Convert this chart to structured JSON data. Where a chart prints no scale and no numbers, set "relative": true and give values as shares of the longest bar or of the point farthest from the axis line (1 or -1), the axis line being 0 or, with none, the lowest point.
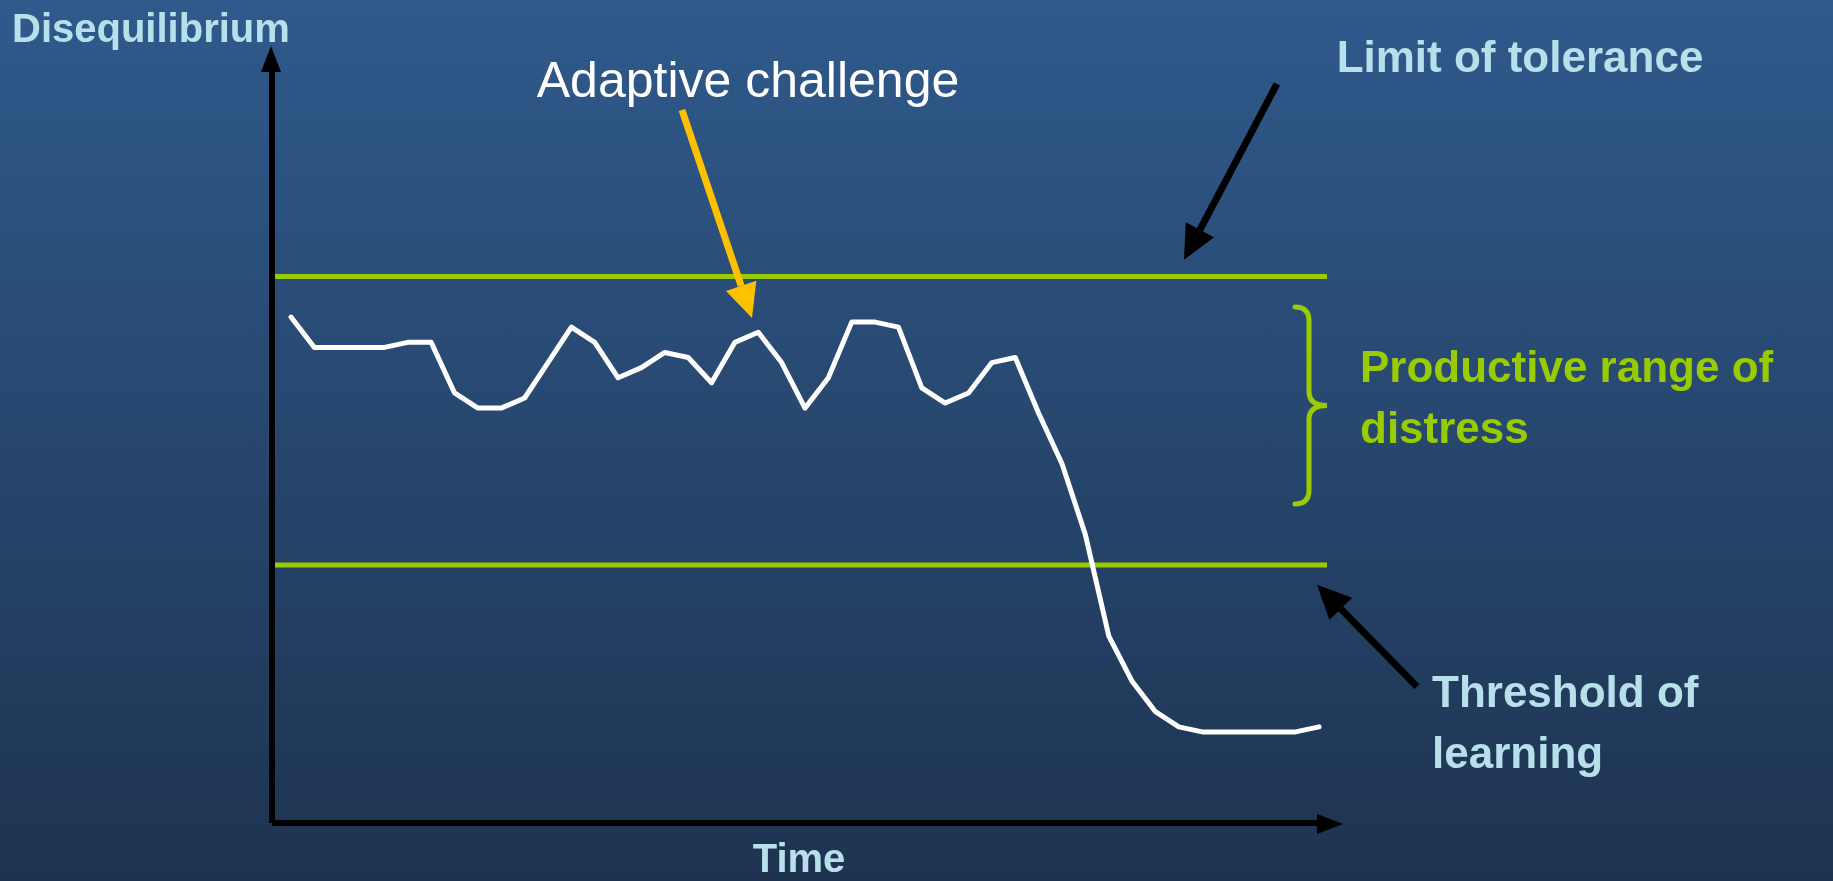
{
  "chart_data": {
    "type": "line",
    "relative": true,
    "xlabel": "Time",
    "marker": "none",
    "categories": [
      null,
      null,
      null,
      null,
      null,
      null,
      null,
      null,
      null,
      null,
      null,
      null,
      null,
      null,
      null,
      null,
      null,
      null,
      null,
      null,
      null,
      null,
      null,
      null,
      null,
      null,
      null,
      null,
      null,
      null,
      null,
      null,
      null,
      null,
      null,
      null,
      null,
      null,
      null,
      null,
      null,
      null,
      null,
      null,
      null
    ],
    "series": [
      {
        "color": "#ffffff",
        "values": [
          1.0,
          0.94,
          0.94,
          0.94,
          0.94,
          0.95,
          0.95,
          0.85,
          0.82,
          0.82,
          0.84,
          0.91,
          0.98,
          0.95,
          0.88,
          0.9,
          0.93,
          0.92,
          0.87,
          0.95,
          0.97,
          0.91,
          0.82,
          0.88,
          0.99,
          0.99,
          0.98,
          0.86,
          0.83,
          0.85,
          0.91,
          0.92,
          0.81,
          0.71,
          0.57,
          0.37,
          0.28,
          0.22,
          0.19,
          0.18,
          0.18,
          0.18,
          0.18,
          0.18,
          0.19
        ]
      }
    ],
    "ref_lines": [
      {
        "axis": "y",
        "value": 1.08,
        "color": "#99cc00"
      },
      {
        "axis": "y",
        "value": 0.51,
        "color": "#99cc00"
      }
    ],
    "annotations": [
      "Disequilibrium",
      "Adaptive challenge",
      "Limit of tolerance",
      "Threshold of learning",
      "Productive range of distress"
    ]
  }
}
